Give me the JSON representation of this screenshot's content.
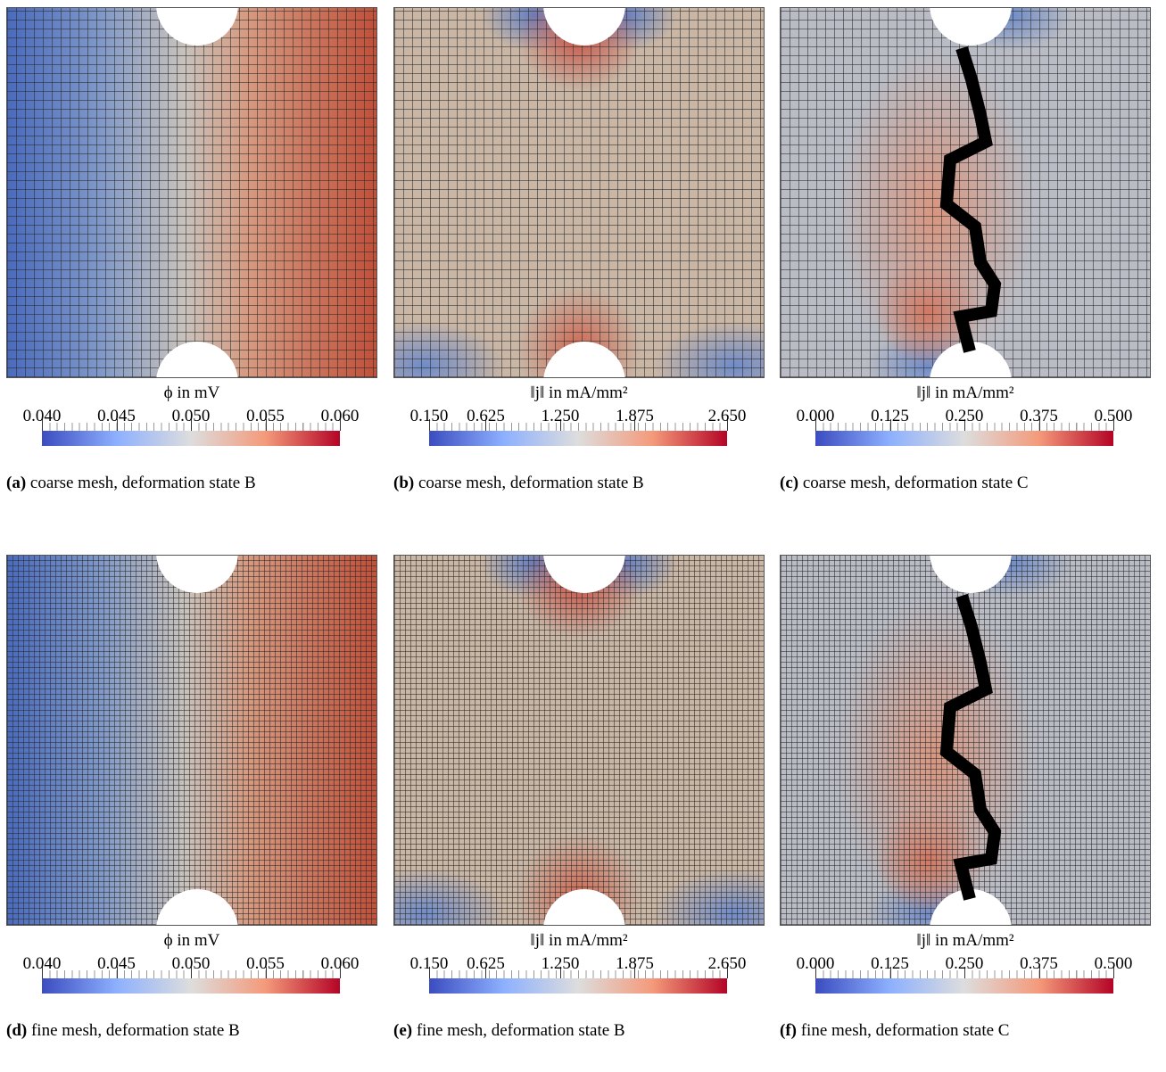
{
  "panels": [
    {
      "label": "(a)",
      "caption": "coarse mesh, deformation state B",
      "colorbar": {
        "title": "ϕ in mV",
        "ticks": [
          {
            "value": 0.04,
            "label": "0.040"
          },
          {
            "value": 0.045,
            "label": "0.045"
          },
          {
            "value": 0.05,
            "label": "0.050"
          },
          {
            "value": 0.055,
            "label": "0.055"
          },
          {
            "value": 0.06,
            "label": "0.060"
          }
        ]
      }
    },
    {
      "label": "(b)",
      "caption": "coarse mesh, deformation state B",
      "colorbar": {
        "title": "‖j‖ in mA/mm²",
        "ticks": [
          {
            "value": 0.15,
            "label": "0.150"
          },
          {
            "value": 0.625,
            "label": "0.625"
          },
          {
            "value": 1.25,
            "label": "1.250"
          },
          {
            "value": 1.875,
            "label": "1.875"
          },
          {
            "value": 2.65,
            "label": "2.650"
          }
        ]
      }
    },
    {
      "label": "(c)",
      "caption": "coarse mesh, deformation state C",
      "colorbar": {
        "title": "‖j‖ in mA/mm²",
        "ticks": [
          {
            "value": 0,
            "label": "0.000"
          },
          {
            "value": 0.125,
            "label": "0.125"
          },
          {
            "value": 0.25,
            "label": "0.250"
          },
          {
            "value": 0.375,
            "label": "0.375"
          },
          {
            "value": 0.5,
            "label": "0.500"
          }
        ]
      }
    },
    {
      "label": "(d)",
      "caption": "fine mesh, deformation state B",
      "colorbar": {
        "title": "ϕ in mV",
        "ticks": [
          {
            "value": 0.04,
            "label": "0.040"
          },
          {
            "value": 0.045,
            "label": "0.045"
          },
          {
            "value": 0.05,
            "label": "0.050"
          },
          {
            "value": 0.055,
            "label": "0.055"
          },
          {
            "value": 0.06,
            "label": "0.060"
          }
        ]
      }
    },
    {
      "label": "(e)",
      "caption": "fine mesh, deformation state B",
      "colorbar": {
        "title": "‖j‖ in mA/mm²",
        "ticks": [
          {
            "value": 0.15,
            "label": "0.150"
          },
          {
            "value": 0.625,
            "label": "0.625"
          },
          {
            "value": 1.25,
            "label": "1.250"
          },
          {
            "value": 1.875,
            "label": "1.875"
          },
          {
            "value": 2.65,
            "label": "2.650"
          }
        ]
      }
    },
    {
      "label": "(f)",
      "caption": "fine mesh, deformation state C",
      "colorbar": {
        "title": "‖j‖ in mA/mm²",
        "ticks": [
          {
            "value": 0,
            "label": "0.000"
          },
          {
            "value": 0.125,
            "label": "0.125"
          },
          {
            "value": 0.25,
            "label": "0.250"
          },
          {
            "value": 0.375,
            "label": "0.375"
          },
          {
            "value": 0.5,
            "label": "0.500"
          }
        ]
      }
    }
  ]
}
